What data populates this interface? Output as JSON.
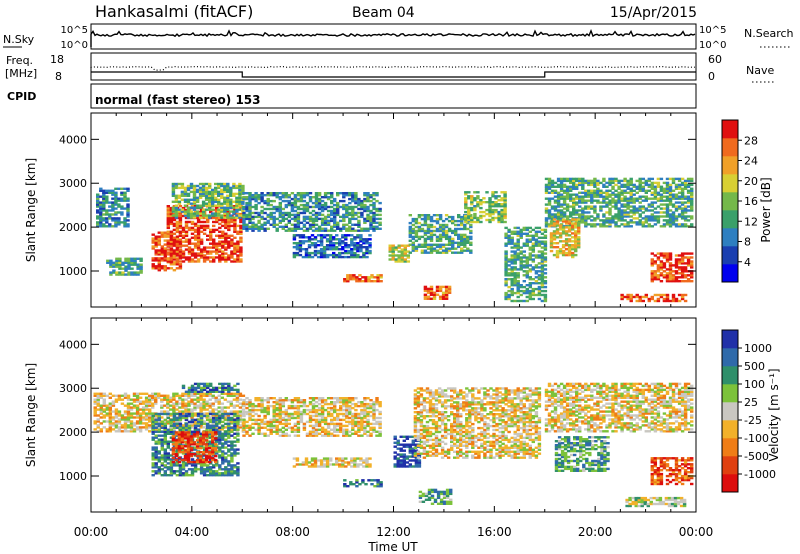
{
  "header": {
    "station": "Hankasalmi (fitACF)",
    "beam": "Beam 04",
    "date": "15/Apr/2015"
  },
  "sky_panel": {
    "left_label": "N.Sky",
    "ticks_left": [
      "10^5",
      "10^0"
    ],
    "right_label": "N.Search",
    "ticks_right": [
      "10^5",
      "10^0"
    ]
  },
  "freq_panel": {
    "left_label_1": "Freq.",
    "left_label_2": "[MHz]",
    "ticks_left": [
      "18",
      "8"
    ],
    "right_label": "Nave",
    "ticks_right": [
      "60",
      "0"
    ]
  },
  "cpid_panel": {
    "label": "CPID",
    "text": "normal (fast stereo) 153"
  },
  "chart_data": [
    {
      "type": "heatmap",
      "title": "",
      "xlabel": "Time UT",
      "ylabel": "Slant Range [km]",
      "x_ticks": [
        "00:00",
        "04:00",
        "08:00",
        "12:00",
        "16:00",
        "20:00",
        "00:00"
      ],
      "y_ticks": [
        "1000",
        "2000",
        "3000",
        "4000"
      ],
      "xlim": [
        0,
        24
      ],
      "ylim": [
        180,
        4600
      ],
      "colorbar": {
        "label": "Power [dB]",
        "ticks": [
          "4",
          "8",
          "12",
          "16",
          "20",
          "24",
          "28"
        ],
        "colors": [
          "#0000ee",
          "#1a3fb0",
          "#2e7fc0",
          "#3aa06a",
          "#74b84a",
          "#d8cf33",
          "#f0a028",
          "#f06a1e",
          "#e01010"
        ]
      },
      "regions": [
        {
          "t": [
            0.2,
            1.5
          ],
          "r": [
            2000,
            2900
          ],
          "level": 0.3
        },
        {
          "t": [
            0.6,
            2.0
          ],
          "r": [
            900,
            1300
          ],
          "level": 0.4
        },
        {
          "t": [
            2.4,
            3.6
          ],
          "r": [
            1000,
            1900
          ],
          "level": 0.85
        },
        {
          "t": [
            3.0,
            6.0
          ],
          "r": [
            1200,
            2500
          ],
          "level": 0.9
        },
        {
          "t": [
            3.2,
            6.0
          ],
          "r": [
            2200,
            3000
          ],
          "level": 0.45
        },
        {
          "t": [
            6.0,
            11.5
          ],
          "r": [
            1900,
            2800
          ],
          "level": 0.35
        },
        {
          "t": [
            8.0,
            11.0
          ],
          "r": [
            1300,
            1800
          ],
          "level": 0.25
        },
        {
          "t": [
            10.0,
            11.5
          ],
          "r": [
            750,
            900
          ],
          "level": 0.8
        },
        {
          "t": [
            11.8,
            12.6
          ],
          "r": [
            1200,
            1600
          ],
          "level": 0.6
        },
        {
          "t": [
            12.6,
            15.0
          ],
          "r": [
            1400,
            2300
          ],
          "level": 0.4
        },
        {
          "t": [
            13.2,
            14.2
          ],
          "r": [
            350,
            650
          ],
          "level": 0.8
        },
        {
          "t": [
            14.8,
            16.4
          ],
          "r": [
            2100,
            2800
          ],
          "level": 0.5
        },
        {
          "t": [
            16.4,
            18.0
          ],
          "r": [
            300,
            2000
          ],
          "level": 0.4
        },
        {
          "t": [
            18.0,
            23.8
          ],
          "r": [
            2000,
            3100
          ],
          "level": 0.4
        },
        {
          "t": [
            18.2,
            19.4
          ],
          "r": [
            1300,
            2200
          ],
          "level": 0.65
        },
        {
          "t": [
            21.0,
            23.6
          ],
          "r": [
            300,
            450
          ],
          "level": 0.85
        },
        {
          "t": [
            22.2,
            23.8
          ],
          "r": [
            750,
            1400
          ],
          "level": 0.9
        }
      ]
    },
    {
      "type": "heatmap",
      "title": "",
      "xlabel": "Time UT",
      "ylabel": "Slant Range [km]",
      "x_ticks": [
        "00:00",
        "04:00",
        "08:00",
        "12:00",
        "16:00",
        "20:00",
        "00:00"
      ],
      "y_ticks": [
        "1000",
        "2000",
        "3000",
        "4000"
      ],
      "xlim": [
        0,
        24
      ],
      "ylim": [
        180,
        4600
      ],
      "colorbar": {
        "label": "Velocity [m s⁻¹]",
        "ticks": [
          "1000",
          "500",
          "100",
          "25",
          "-25",
          "-100",
          "-500",
          "-1000"
        ],
        "colors": [
          "#2030a8",
          "#2f6aaa",
          "#2f8f6a",
          "#7cc23a",
          "#c9c7c1",
          "#f2b12a",
          "#ef7d16",
          "#e04010",
          "#dd0d0d"
        ]
      },
      "regions": [
        {
          "t": [
            0.1,
            6.0
          ],
          "r": [
            2000,
            2900
          ],
          "level": 0.45
        },
        {
          "t": [
            2.4,
            5.8
          ],
          "r": [
            1000,
            2400
          ],
          "level": 0.75
        },
        {
          "t": [
            3.2,
            5.0
          ],
          "r": [
            1300,
            2000
          ],
          "level": 0.15
        },
        {
          "t": [
            3.6,
            5.8
          ],
          "r": [
            2900,
            3100
          ],
          "level": 0.8
        },
        {
          "t": [
            6.0,
            11.5
          ],
          "r": [
            1900,
            2800
          ],
          "level": 0.45
        },
        {
          "t": [
            8.0,
            11.0
          ],
          "r": [
            1200,
            1400
          ],
          "level": 0.45
        },
        {
          "t": [
            10.0,
            11.5
          ],
          "r": [
            750,
            900
          ],
          "level": 0.8
        },
        {
          "t": [
            12.0,
            13.0
          ],
          "r": [
            1200,
            1900
          ],
          "level": 0.9
        },
        {
          "t": [
            13.0,
            14.2
          ],
          "r": [
            350,
            700
          ],
          "level": 0.7
        },
        {
          "t": [
            12.8,
            17.8
          ],
          "r": [
            1400,
            3000
          ],
          "level": 0.45
        },
        {
          "t": [
            18.0,
            23.8
          ],
          "r": [
            2000,
            3100
          ],
          "level": 0.45
        },
        {
          "t": [
            18.4,
            20.5
          ],
          "r": [
            1100,
            1900
          ],
          "level": 0.7
        },
        {
          "t": [
            21.2,
            23.6
          ],
          "r": [
            300,
            500
          ],
          "level": 0.55
        },
        {
          "t": [
            22.2,
            23.8
          ],
          "r": [
            800,
            1400
          ],
          "level": 0.2
        }
      ]
    }
  ]
}
